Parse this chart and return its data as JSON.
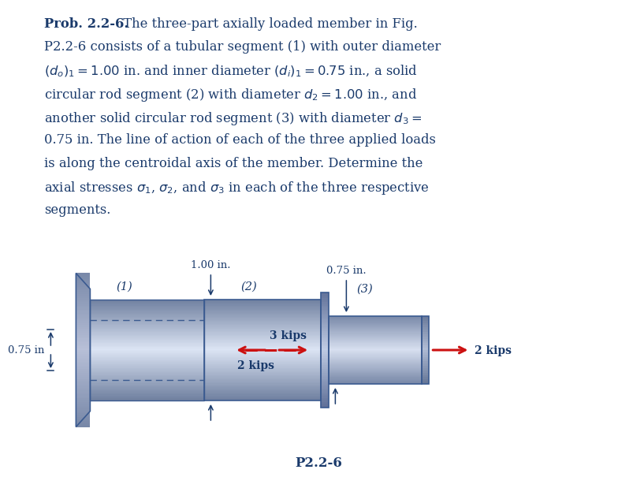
{
  "text_color": "#1a3a6b",
  "background_color": "#ffffff",
  "label_1_00": "1.00 in.",
  "label_0_75_top": "0.75 in.",
  "label_0_75_left": "0.75 in",
  "seg1_label": "(1)",
  "seg2_label": "(2)",
  "seg3_label": "(3)",
  "force_3kips": "3 kips",
  "force_2kips_left": "2 kips",
  "force_2kips_right": "2 kips",
  "figure_label": "P2.2-6",
  "body_color_edge": "#3a5a90",
  "arrow_color": "#cc1111",
  "wall_color_light": "#aab0c8",
  "wall_color_dark": "#7080a0",
  "cyl_center_light": "#dce4f4",
  "cyl_edge_dark": "#7080a0",
  "collar_center_light": "#c8d0e8",
  "collar_edge_dark": "#6070a0"
}
